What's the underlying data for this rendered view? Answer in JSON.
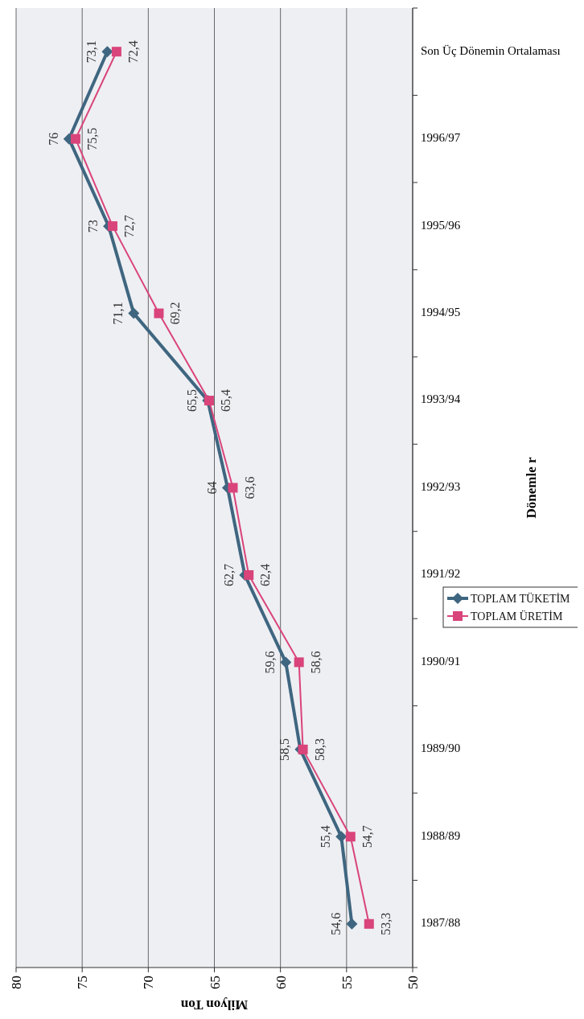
{
  "chart_data": {
    "type": "line",
    "orientation": "horizontal",
    "xlabel": "Milyon Ton",
    "ylabel": "Dönemle r",
    "categories": [
      "Son Üç Dönemin Ortalaması",
      "1996/97",
      "1995/96",
      "1994/95",
      "1993/94",
      "1992/93",
      "1991/92",
      "1990/91",
      "1989/90",
      "1988/89",
      "1987/88"
    ],
    "series": [
      {
        "name": "TOPLAM TÜKETİM",
        "color": "#3f6680",
        "marker": "diamond",
        "values": [
          73.1,
          76,
          73,
          71.1,
          65.5,
          64,
          62.7,
          59.6,
          58.5,
          55.4,
          54.6
        ],
        "value_labels": [
          "73,1",
          "76",
          "73",
          "71,1",
          "65,5",
          "64",
          "62,7",
          "59,6",
          "58,5",
          "55,4",
          "54,6"
        ]
      },
      {
        "name": "TOPLAM ÜRETİM",
        "color": "#d9447a",
        "marker": "square",
        "values": [
          72.4,
          75.5,
          72.7,
          69.2,
          65.4,
          63.6,
          62.4,
          58.6,
          58.3,
          54.7,
          53.3
        ],
        "value_labels": [
          "72,4",
          "75,5",
          "72,7",
          "69,2",
          "65,4",
          "63,6",
          "62,4",
          "58,6",
          "58,3",
          "54,7",
          "53,3"
        ]
      }
    ],
    "xlim": [
      80,
      50
    ],
    "xticks": [
      80,
      75,
      70,
      65,
      60,
      55,
      50
    ],
    "grid": "x",
    "legend": "right"
  }
}
